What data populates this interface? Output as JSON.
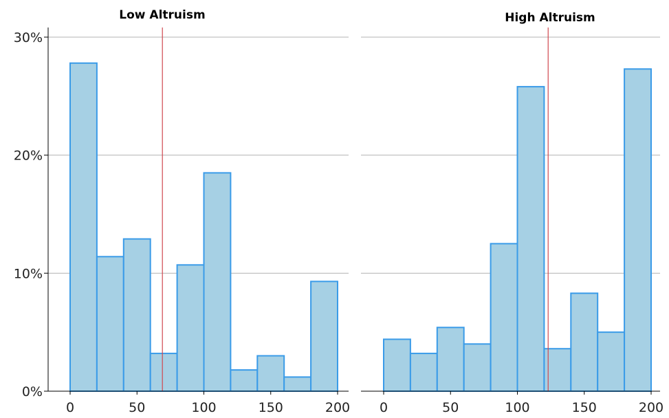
{
  "chart_data": [
    {
      "type": "bar",
      "title": "Low Altruism",
      "bins": [
        [
          0,
          20
        ],
        [
          20,
          40
        ],
        [
          40,
          60
        ],
        [
          60,
          80
        ],
        [
          80,
          100
        ],
        [
          100,
          120
        ],
        [
          120,
          140
        ],
        [
          140,
          160
        ],
        [
          160,
          180
        ],
        [
          180,
          200
        ]
      ],
      "values": [
        27.8,
        11.4,
        12.9,
        3.2,
        10.7,
        18.5,
        1.8,
        3.0,
        1.2,
        9.3
      ],
      "mean_line": 69,
      "xlim": [
        0,
        200
      ],
      "ylim": [
        0,
        30
      ],
      "x_ticks": [
        0,
        50,
        100,
        150,
        200
      ],
      "x_tick_labels": [
        "0",
        "50",
        "100",
        "150",
        "200"
      ],
      "y_ticks": [
        0,
        10,
        20,
        30
      ],
      "y_tick_labels": [
        "0%",
        "10%",
        "20%",
        "30%"
      ],
      "grid": "horizontal"
    },
    {
      "type": "bar",
      "title": "High Altruism",
      "bins": [
        [
          0,
          20
        ],
        [
          20,
          40
        ],
        [
          40,
          60
        ],
        [
          60,
          80
        ],
        [
          80,
          100
        ],
        [
          100,
          120
        ],
        [
          120,
          140
        ],
        [
          140,
          160
        ],
        [
          160,
          180
        ],
        [
          180,
          200
        ]
      ],
      "values": [
        4.4,
        3.2,
        5.4,
        4.0,
        12.5,
        25.8,
        3.6,
        8.3,
        5.0,
        27.3
      ],
      "mean_line": 123,
      "xlim": [
        0,
        200
      ],
      "ylim": [
        0,
        30
      ],
      "x_ticks": [
        0,
        50,
        100,
        150,
        200
      ],
      "x_tick_labels": [
        "0",
        "50",
        "100",
        "150",
        "200"
      ],
      "y_ticks": [
        0,
        10,
        20,
        30
      ],
      "y_tick_labels": [],
      "grid": "horizontal"
    }
  ],
  "colors": {
    "bar_fill": "#a6d0e4",
    "bar_edge": "#3a9be8",
    "mean_line": "#d0474f",
    "grid": "#b3b3b3"
  }
}
